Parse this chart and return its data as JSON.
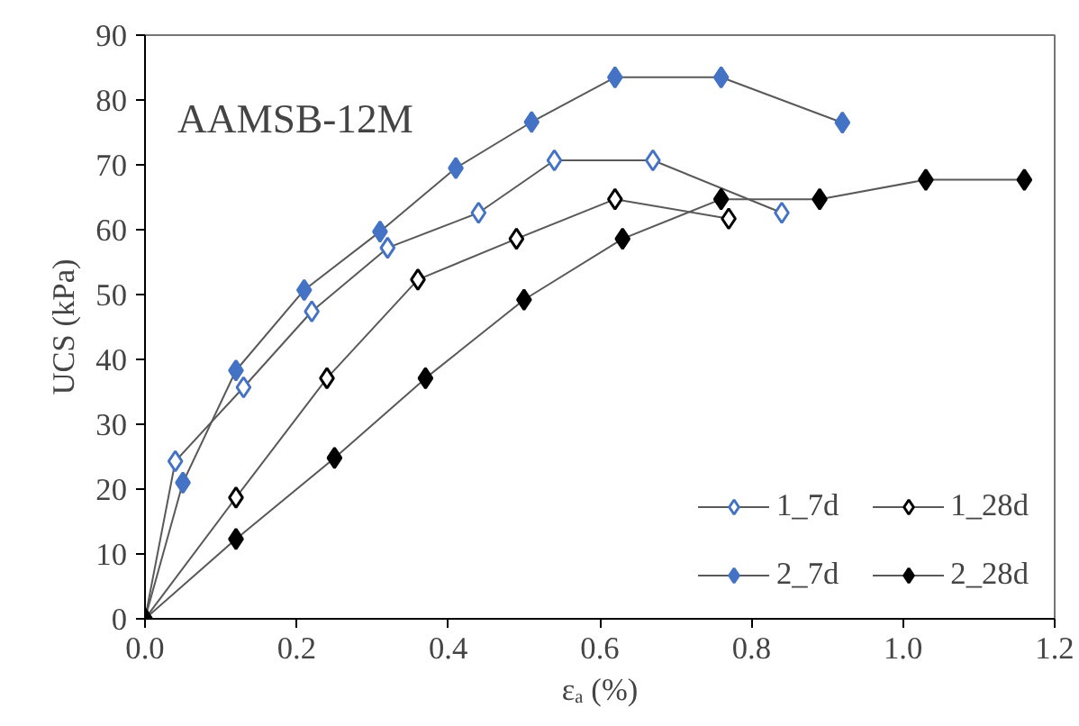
{
  "chart_data": {
    "type": "line",
    "xlabel": "εₐ (%)",
    "ylabel": "UCS (kPa)",
    "annotations": [
      "AAMSB-12M"
    ],
    "xlim": [
      0,
      1.2
    ],
    "xticks": [
      {
        "value": 0,
        "label": "0.0"
      },
      {
        "value": 0.2,
        "label": "0.2"
      },
      {
        "value": 0.4,
        "label": "0.4"
      },
      {
        "value": 0.6,
        "label": "0.6"
      },
      {
        "value": 0.8,
        "label": "0.8"
      },
      {
        "value": 1.0,
        "label": "1.0"
      },
      {
        "value": 1.2,
        "label": "1.2"
      }
    ],
    "ylim": [
      0,
      90
    ],
    "yticks": [
      0,
      10,
      20,
      30,
      40,
      50,
      60,
      70,
      80,
      90
    ],
    "grid": false,
    "legend": "bottom right",
    "marker": "diamond",
    "line_style": "solid",
    "series": [
      {
        "name": "1_7d",
        "color": "#4472c4",
        "x": [
          0,
          0.04,
          0.13,
          0.22,
          0.32,
          0.44,
          0.54,
          0.67,
          0.84
        ],
        "values": [
          0,
          24.3,
          35.7,
          47.4,
          57.2,
          62.6,
          70.7,
          70.7,
          62.6
        ]
      },
      {
        "name": "2_7d",
        "color": "#4472c4",
        "x": [
          0,
          0.05,
          0.12,
          0.21,
          0.31,
          0.41,
          0.51,
          0.62,
          0.76,
          0.92
        ],
        "values": [
          0,
          21.0,
          38.3,
          50.7,
          59.7,
          69.5,
          76.6,
          83.5,
          83.5,
          76.5
        ]
      },
      {
        "name": "1_28d",
        "color": "#000000",
        "x": [
          0,
          0.12,
          0.24,
          0.36,
          0.49,
          0.62,
          0.77
        ],
        "values": [
          0,
          18.7,
          37.1,
          52.3,
          58.6,
          64.7,
          61.7
        ]
      },
      {
        "name": "2_28d",
        "color": "#000000",
        "x": [
          0,
          0.12,
          0.25,
          0.37,
          0.5,
          0.63,
          0.76,
          0.89,
          1.03,
          1.16
        ],
        "values": [
          0,
          12.3,
          24.8,
          37.1,
          49.2,
          58.6,
          64.7,
          64.7,
          67.7,
          67.7
        ]
      }
    ]
  }
}
